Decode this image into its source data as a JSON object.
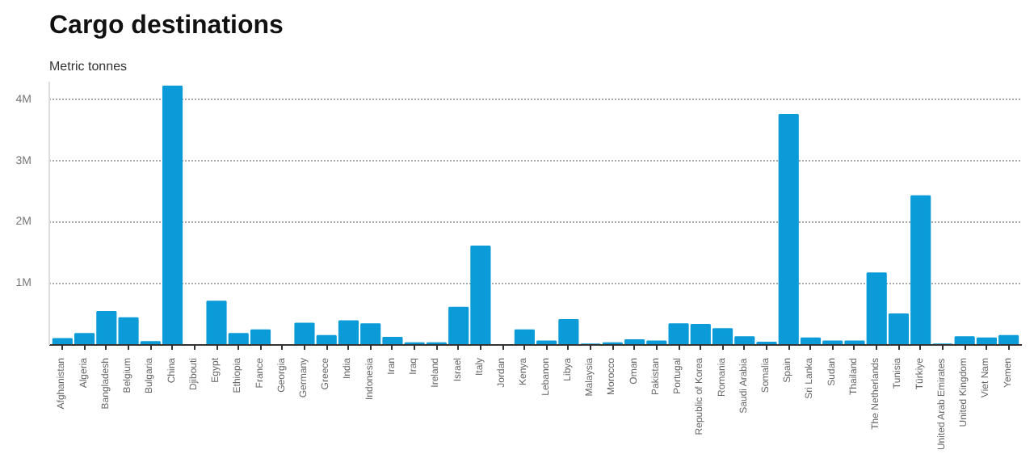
{
  "chart_data": {
    "type": "bar",
    "title": "Cargo destinations",
    "subtitle": "Metric tonnes",
    "categories": [
      "Afghanistan",
      "Algeria",
      "Bangladesh",
      "Belgium",
      "Bulgaria",
      "China",
      "Djibouti",
      "Egypt",
      "Ethiopia",
      "France",
      "Georgia",
      "Germany",
      "Greece",
      "India",
      "Indonesia",
      "Iran",
      "Iraq",
      "Ireland",
      "Israel",
      "Italy",
      "Jordan",
      "Kenya",
      "Lebanon",
      "Libya",
      "Malaysia",
      "Morocco",
      "Oman",
      "Pakistan",
      "Portugal",
      "Republic of Korea",
      "Romania",
      "Saudi Arabia",
      "Somalia",
      "Spain",
      "Sri Lanka",
      "Sudan",
      "Thailand",
      "The Netherlands",
      "Tunisia",
      "Türkiye",
      "United Arab Emirates",
      "United Kingdom",
      "Viet Nam",
      "Yemen"
    ],
    "values": [
      100000,
      180000,
      540000,
      440000,
      50000,
      4220000,
      0,
      710000,
      180000,
      240000,
      0,
      350000,
      150000,
      390000,
      340000,
      120000,
      30000,
      30000,
      610000,
      1610000,
      0,
      240000,
      60000,
      410000,
      10000,
      30000,
      80000,
      60000,
      340000,
      330000,
      260000,
      130000,
      40000,
      3760000,
      110000,
      60000,
      60000,
      1170000,
      500000,
      2430000,
      10000,
      130000,
      110000,
      150000
    ],
    "color": "#0a9bd8",
    "ylim": [
      0,
      4300000
    ],
    "yticks": [
      {
        "value": 1000000,
        "label": "1M"
      },
      {
        "value": 2000000,
        "label": "2M"
      },
      {
        "value": 3000000,
        "label": "3M"
      },
      {
        "value": 4000000,
        "label": "4M"
      }
    ],
    "grid": "y"
  }
}
